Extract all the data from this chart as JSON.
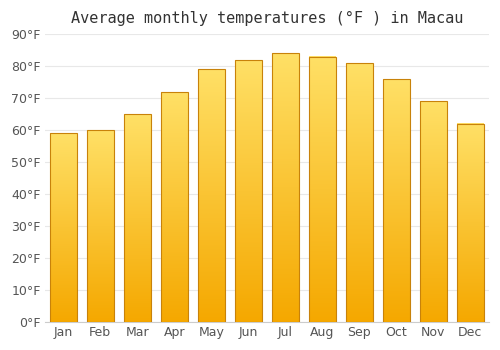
{
  "title": "Average monthly temperatures (°F ) in Macau",
  "months": [
    "Jan",
    "Feb",
    "Mar",
    "Apr",
    "May",
    "Jun",
    "Jul",
    "Aug",
    "Sep",
    "Oct",
    "Nov",
    "Dec"
  ],
  "values": [
    59,
    60,
    65,
    72,
    79,
    82,
    84,
    83,
    81,
    76,
    69,
    62
  ],
  "bar_color_bottom": "#F5A800",
  "bar_color_top": "#FFE066",
  "bar_edge_color": "#C8820A",
  "ylim": [
    0,
    90
  ],
  "yticks": [
    0,
    10,
    20,
    30,
    40,
    50,
    60,
    70,
    80,
    90
  ],
  "ytick_labels": [
    "0°F",
    "10°F",
    "20°F",
    "30°F",
    "40°F",
    "50°F",
    "60°F",
    "70°F",
    "80°F",
    "90°F"
  ],
  "background_color": "#ffffff",
  "grid_color": "#e8e8e8",
  "title_fontsize": 11,
  "tick_fontsize": 9,
  "tick_color": "#555555"
}
